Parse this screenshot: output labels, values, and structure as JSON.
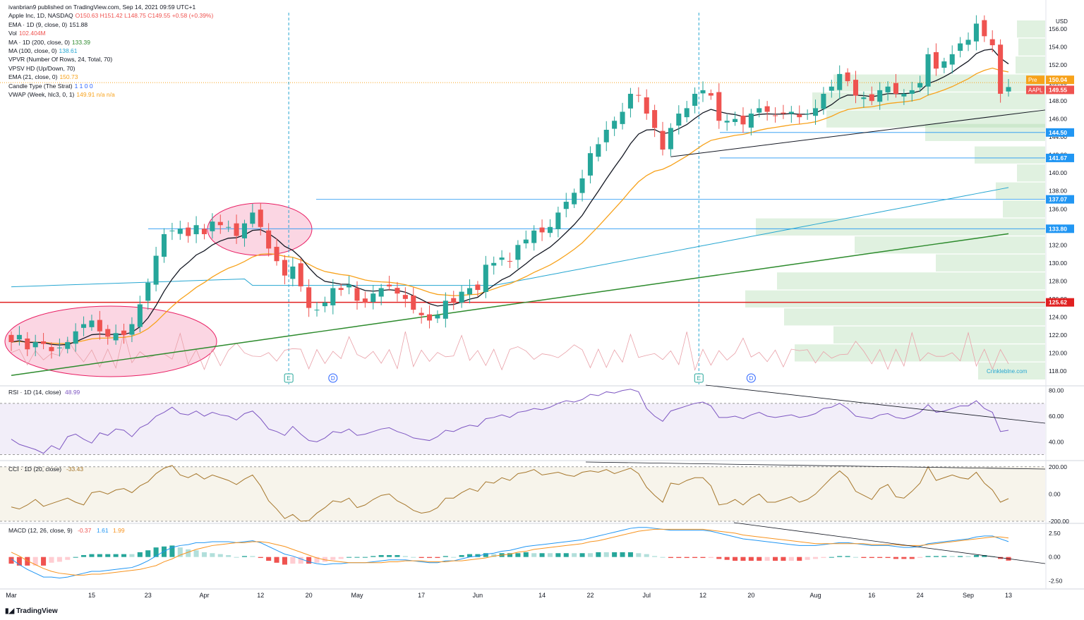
{
  "header": {
    "publisher": "ivanbrian9 published on TradingView.com, Sep 14, 2021 09:59 UTC+1"
  },
  "legend": [
    {
      "label": "Apple Inc, 1D, NASDAQ",
      "value": "O150.63  H151.42  L148.75  C149.55  +0.58 (+0.39%)",
      "color": "#ef5350"
    },
    {
      "label": "EMA · 1D (9, close, 0)",
      "value": "151.88",
      "color": "#131722"
    },
    {
      "label": "Vol",
      "value": "102.404M",
      "color": "#ef5350"
    },
    {
      "label": "MA · 1D (200, close, 0)",
      "value": "133.39",
      "color": "#2e8b2e"
    },
    {
      "label": "MA (100, close, 0)",
      "value": "138.61",
      "color": "#26a6d1"
    },
    {
      "label": "VPVR (Number Of Rows, 24, Total, 70)",
      "value": "",
      "color": "#131722"
    },
    {
      "label": "VPSV HD (Up/Down, 70)",
      "value": "",
      "color": "#131722"
    },
    {
      "label": "EMA (21, close, 0)",
      "value": "150.73",
      "color": "#f7a21b"
    },
    {
      "label": "Candle Type (The Strat)",
      "value": "1  1  0  0",
      "color": "#2962ff"
    },
    {
      "label": "VWAP (Week, hlc3, 0, 1)",
      "value": "149.91  n/a  n/a",
      "color": "#f7a21b"
    }
  ],
  "chart_data": [
    {
      "type": "candlestick",
      "title": "Apple Inc, 1D, NASDAQ",
      "ylim": [
        116.5,
        157.5
      ],
      "x_labels": [
        "Mar",
        "15",
        "23",
        "Apr",
        "12",
        "20",
        "May",
        "17",
        "Jun",
        "14",
        "22",
        "Jul",
        "12",
        "20",
        "Aug",
        "16",
        "24",
        "Sep",
        "13"
      ],
      "y_ticks": [
        118,
        120,
        122,
        124,
        126,
        128,
        130,
        132,
        134,
        136,
        138,
        140,
        142,
        144,
        146,
        148,
        150,
        152,
        154,
        156
      ],
      "currency": "USD",
      "close_series": [
        121.2,
        122.0,
        120.4,
        121.2,
        121.0,
        120.2,
        120.6,
        121.2,
        122.4,
        123.2,
        123.6,
        122.4,
        121.8,
        122.2,
        122.0,
        123.2,
        125.4,
        127.8,
        130.8,
        133.2,
        133.6,
        133.8,
        133.0,
        134.2,
        133.2,
        134.6,
        134.2,
        134.0,
        133.0,
        134.4,
        135.6,
        134.0,
        131.6,
        130.2,
        128.6,
        129.6,
        127.4,
        125.0,
        124.8,
        125.6,
        127.2,
        127.0,
        127.6,
        125.8,
        125.6,
        126.6,
        127.2,
        127.4,
        126.6,
        126.0,
        124.8,
        124.2,
        123.6,
        124.2,
        125.8,
        125.6,
        126.8,
        127.2,
        127.0,
        129.8,
        130.0,
        130.6,
        130.2,
        132.0,
        132.6,
        133.6,
        133.4,
        134.0,
        135.6,
        136.8,
        137.8,
        139.4,
        142.2,
        143.2,
        144.8,
        145.8,
        146.8,
        148.8,
        148.6,
        146.6,
        145.0,
        142.6,
        145.0,
        146.6,
        147.2,
        148.8,
        149.2,
        148.6,
        145.8,
        145.8,
        146.0,
        145.4,
        146.6,
        147.2,
        146.8,
        146.4,
        146.6,
        146.8,
        146.2,
        146.6,
        147.2,
        148.8,
        149.6,
        151.0,
        150.2,
        148.6,
        148.4,
        148.0,
        149.2,
        149.6,
        148.8,
        148.8,
        149.2,
        150.0,
        153.2,
        151.6,
        152.4,
        153.2,
        154.4,
        154.8,
        156.6,
        155.2,
        154.2,
        148.8,
        149.55
      ],
      "series": [
        {
          "name": "EMA (9)",
          "last": 151.88,
          "color": "#131722"
        },
        {
          "name": "EMA (21)",
          "last": 150.73,
          "color": "#f7a21b"
        },
        {
          "name": "MA (100)",
          "last": 138.61,
          "color": "#26a6d1"
        },
        {
          "name": "MA (200)",
          "last": 133.39,
          "color": "#2e8b2e"
        }
      ],
      "price_labels": [
        {
          "value": "150.04",
          "tag": "Pre",
          "color": "#f7a21b"
        },
        {
          "value": "149.55",
          "tag": "AAPL",
          "color": "#ef5350"
        },
        {
          "value": "144.50",
          "color": "#2196f3"
        },
        {
          "value": "141.67",
          "color": "#2196f3"
        },
        {
          "value": "137.07",
          "color": "#2196f3"
        },
        {
          "value": "133.80",
          "color": "#2196f3"
        },
        {
          "value": "125.62",
          "color": "#e02020"
        }
      ],
      "horizontal_levels": [
        144.5,
        141.67,
        137.07,
        133.8,
        125.62
      ],
      "event_markers": [
        "E",
        "D",
        "E",
        "D"
      ],
      "watermark": "Crinkleblne.com"
    },
    {
      "type": "line",
      "title": "RSI · 1D (14, close)",
      "last": "48.99",
      "ylim": [
        27,
        82
      ],
      "y_ticks": [
        "80.00",
        "60.00",
        "40.00"
      ],
      "band": [
        30,
        70
      ],
      "values": [
        42,
        38,
        36,
        34,
        31,
        37,
        34,
        44,
        46,
        42,
        39,
        47,
        45,
        50,
        49,
        44,
        51,
        54,
        60,
        63,
        67,
        62,
        61,
        64,
        60,
        63,
        61,
        60,
        57,
        62,
        64,
        58,
        50,
        48,
        45,
        52,
        46,
        41,
        40,
        43,
        48,
        47,
        50,
        45,
        46,
        48,
        50,
        51,
        48,
        46,
        43,
        42,
        41,
        44,
        49,
        48,
        51,
        53,
        52,
        58,
        59,
        61,
        59,
        63,
        64,
        66,
        65,
        67,
        70,
        72,
        71,
        73,
        77,
        76,
        79,
        78,
        80,
        81,
        79,
        66,
        60,
        56,
        64,
        66,
        68,
        70,
        71,
        68,
        59,
        59,
        60,
        58,
        61,
        63,
        60,
        59,
        60,
        61,
        59,
        60,
        62,
        66,
        67,
        70,
        66,
        60,
        59,
        58,
        61,
        62,
        59,
        58,
        60,
        63,
        69,
        63,
        64,
        66,
        68,
        68,
        72,
        66,
        63,
        48,
        49
      ]
    },
    {
      "type": "line",
      "title": "CCI · 1D (20, close)",
      "last": "-33.43",
      "ylim": [
        -205,
        230
      ],
      "y_ticks": [
        "200.00",
        "0.00",
        "-200.00"
      ],
      "band": [
        -100,
        100
      ],
      "values": [
        -95,
        -110,
        -80,
        -40,
        -90,
        -70,
        -50,
        -30,
        -60,
        -80,
        10,
        20,
        0,
        30,
        40,
        10,
        60,
        90,
        150,
        190,
        210,
        140,
        120,
        150,
        110,
        140,
        120,
        100,
        70,
        110,
        140,
        60,
        -50,
        -110,
        -180,
        -150,
        -200,
        -195,
        -140,
        -100,
        -50,
        -60,
        -30,
        -100,
        -80,
        -40,
        -10,
        0,
        -50,
        -80,
        -120,
        -140,
        -130,
        -100,
        -30,
        -30,
        10,
        40,
        20,
        90,
        80,
        120,
        100,
        150,
        160,
        180,
        140,
        150,
        160,
        140,
        130,
        160,
        170,
        160,
        180,
        150,
        170,
        190,
        150,
        50,
        -10,
        -60,
        80,
        70,
        100,
        120,
        120,
        60,
        -80,
        -70,
        -40,
        -80,
        -30,
        0,
        -60,
        -60,
        -40,
        -20,
        -60,
        -40,
        0,
        60,
        120,
        170,
        120,
        20,
        -10,
        -40,
        40,
        70,
        -20,
        -30,
        20,
        80,
        200,
        100,
        120,
        140,
        120,
        110,
        160,
        80,
        30,
        -60,
        -33.43
      ]
    },
    {
      "type": "bar+line",
      "title": "MACD (12, 26, close, 9)",
      "last": [
        "-0.37",
        "1.61",
        "1.99"
      ],
      "ylim": [
        -3.2,
        3.3
      ],
      "y_ticks": [
        "2.50",
        "0.00",
        "-2.50"
      ],
      "series": [
        {
          "name": "MACD",
          "color": "#2196f3",
          "values": [
            -0.2,
            -0.8,
            -1.3,
            -1.7,
            -2.1,
            -2.1,
            -2.2,
            -2.1,
            -1.9,
            -1.7,
            -1.5,
            -1.5,
            -1.4,
            -1.3,
            -1.2,
            -1.1,
            -0.8,
            -0.4,
            0.1,
            0.6,
            1.0,
            1.2,
            1.3,
            1.5,
            1.5,
            1.6,
            1.6,
            1.6,
            1.5,
            1.6,
            1.7,
            1.5,
            1.1,
            0.7,
            0.3,
            0.1,
            -0.2,
            -0.5,
            -0.7,
            -0.8,
            -0.7,
            -0.7,
            -0.6,
            -0.6,
            -0.6,
            -0.5,
            -0.4,
            -0.3,
            -0.3,
            -0.3,
            -0.4,
            -0.5,
            -0.6,
            -0.6,
            -0.4,
            -0.4,
            -0.2,
            0.0,
            0.1,
            0.3,
            0.4,
            0.6,
            0.7,
            0.9,
            1.1,
            1.2,
            1.3,
            1.4,
            1.5,
            1.6,
            1.7,
            1.8,
            2.0,
            2.2,
            2.4,
            2.6,
            2.8,
            3.0,
            3.1,
            3.1,
            3.0,
            2.9,
            2.8,
            2.8,
            2.8,
            2.8,
            2.8,
            2.7,
            2.5,
            2.3,
            2.1,
            1.9,
            1.8,
            1.7,
            1.6,
            1.5,
            1.4,
            1.3,
            1.2,
            1.2,
            1.2,
            1.3,
            1.4,
            1.5,
            1.5,
            1.4,
            1.3,
            1.2,
            1.2,
            1.2,
            1.1,
            1.0,
            1.0,
            1.1,
            1.4,
            1.5,
            1.6,
            1.7,
            1.8,
            1.9,
            2.1,
            2.2,
            2.2,
            1.9,
            1.61
          ]
        },
        {
          "name": "Signal",
          "color": "#f7931e",
          "values": [
            0.5,
            0.1,
            -0.4,
            -0.8,
            -1.2,
            -1.5,
            -1.7,
            -1.8,
            -1.9,
            -1.9,
            -1.8,
            -1.8,
            -1.7,
            -1.6,
            -1.5,
            -1.4,
            -1.3,
            -1.1,
            -0.9,
            -0.5,
            -0.2,
            0.2,
            0.5,
            0.8,
            1.0,
            1.2,
            1.3,
            1.4,
            1.5,
            1.5,
            1.6,
            1.6,
            1.5,
            1.3,
            1.1,
            0.8,
            0.5,
            0.2,
            -0.1,
            -0.3,
            -0.4,
            -0.5,
            -0.6,
            -0.6,
            -0.6,
            -0.6,
            -0.6,
            -0.5,
            -0.5,
            -0.4,
            -0.4,
            -0.4,
            -0.5,
            -0.5,
            -0.5,
            -0.4,
            -0.4,
            -0.3,
            -0.2,
            -0.1,
            0.1,
            0.2,
            0.3,
            0.5,
            0.6,
            0.8,
            0.9,
            1.0,
            1.1,
            1.2,
            1.3,
            1.4,
            1.6,
            1.7,
            1.9,
            2.1,
            2.3,
            2.5,
            2.7,
            2.8,
            2.9,
            2.9,
            2.9,
            2.9,
            2.9,
            2.9,
            2.9,
            2.8,
            2.7,
            2.6,
            2.5,
            2.3,
            2.2,
            2.1,
            2.0,
            1.9,
            1.8,
            1.7,
            1.6,
            1.5,
            1.4,
            1.4,
            1.4,
            1.4,
            1.4,
            1.4,
            1.4,
            1.3,
            1.3,
            1.3,
            1.3,
            1.2,
            1.2,
            1.2,
            1.3,
            1.4,
            1.5,
            1.6,
            1.7,
            1.8,
            1.9,
            2.0,
            2.1,
            2.1,
            1.99
          ]
        }
      ]
    }
  ],
  "footer": {
    "brand": "TradingView"
  }
}
